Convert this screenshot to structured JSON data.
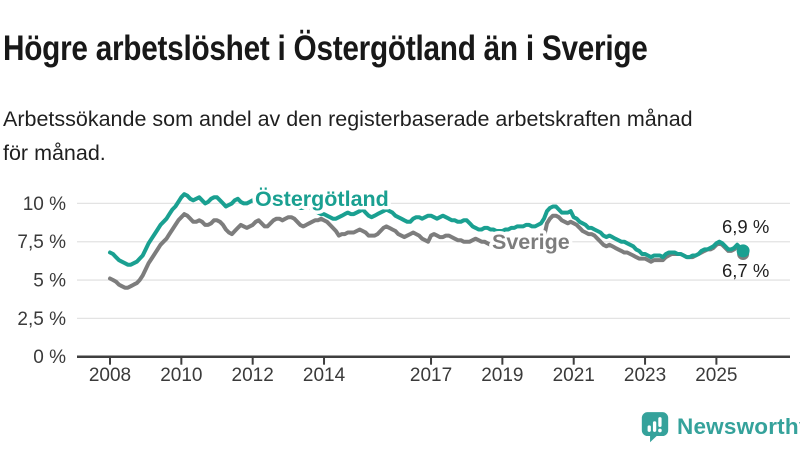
{
  "header": {
    "title": "Högre arbetslöshet i Östergötland än i Sverige",
    "subtitle": "Arbetssökande som andel av den registerbaserade arbetskraften månad\nför månad."
  },
  "footer": {
    "brand": "Newsworthy"
  },
  "colors": {
    "ostergotland": "#1aa091",
    "sverige": "#7d7d7d",
    "brand_teal": "#35a29b",
    "axis": "#3f3f3f",
    "grid": "#e3e3e3",
    "text": "#1f1f1f"
  },
  "chart_data": {
    "type": "line",
    "frequency": "monthly",
    "x_start": "2008-01",
    "x_end": "2025-10",
    "x_start_year": 2008,
    "x_tick_years": [
      2008,
      2010,
      2012,
      2014,
      2017,
      2019,
      2021,
      2023,
      2025
    ],
    "y_ticks": [
      {
        "value": 0,
        "label": "0 %"
      },
      {
        "value": 2.5,
        "label": "2,5 %"
      },
      {
        "value": 5,
        "label": "5 %"
      },
      {
        "value": 7.5,
        "label": "7,5 %"
      },
      {
        "value": 10,
        "label": "10 %"
      }
    ],
    "ylim": [
      0,
      11.5
    ],
    "unit": "%",
    "grid": true,
    "legend": "inline-labels",
    "series": [
      {
        "name": "Östergötland",
        "color": "#1aa091",
        "end_label": "6,9 %",
        "end_value": 6.9,
        "values": [
          6.8,
          6.7,
          6.5,
          6.3,
          6.2,
          6.1,
          6.0,
          6.0,
          6.1,
          6.2,
          6.4,
          6.6,
          7.0,
          7.4,
          7.7,
          8.0,
          8.3,
          8.6,
          8.8,
          9.0,
          9.3,
          9.6,
          9.8,
          10.1,
          10.4,
          10.6,
          10.5,
          10.3,
          10.2,
          10.3,
          10.4,
          10.2,
          10.0,
          10.1,
          10.3,
          10.4,
          10.4,
          10.2,
          10.0,
          9.8,
          9.9,
          10.0,
          10.2,
          10.3,
          10.1,
          10.0,
          10.0,
          10.1,
          10.2,
          10.3,
          10.1,
          9.9,
          9.8,
          9.9,
          10.1,
          10.2,
          10.0,
          9.9,
          9.9,
          10.0,
          10.1,
          10.1,
          10.0,
          9.8,
          9.7,
          9.7,
          9.8,
          9.8,
          9.6,
          9.5,
          9.4,
          9.3,
          9.3,
          9.2,
          9.1,
          9.0,
          9.0,
          9.1,
          9.2,
          9.3,
          9.4,
          9.3,
          9.3,
          9.4,
          9.5,
          9.6,
          9.4,
          9.2,
          9.1,
          9.2,
          9.3,
          9.4,
          9.5,
          9.6,
          9.5,
          9.4,
          9.2,
          9.1,
          9.0,
          8.9,
          8.8,
          8.8,
          9.0,
          9.1,
          9.1,
          9.0,
          9.1,
          9.2,
          9.2,
          9.1,
          9.0,
          9.1,
          9.2,
          9.1,
          9.0,
          8.9,
          8.9,
          8.8,
          8.8,
          8.9,
          8.9,
          8.7,
          8.5,
          8.4,
          8.3,
          8.3,
          8.4,
          8.4,
          8.3,
          8.3,
          8.2,
          8.2,
          8.2,
          8.3,
          8.3,
          8.4,
          8.4,
          8.5,
          8.5,
          8.5,
          8.6,
          8.6,
          8.5,
          8.5,
          8.6,
          8.7,
          9.0,
          9.5,
          9.7,
          9.8,
          9.8,
          9.6,
          9.4,
          9.4,
          9.4,
          9.5,
          9.1,
          9.0,
          8.8,
          8.7,
          8.6,
          8.4,
          8.4,
          8.3,
          8.2,
          8.1,
          7.9,
          7.8,
          7.9,
          7.8,
          7.7,
          7.6,
          7.5,
          7.5,
          7.4,
          7.3,
          7.2,
          7.0,
          6.9,
          6.7,
          6.7,
          6.6,
          6.5,
          6.6,
          6.6,
          6.6,
          6.5,
          6.7,
          6.8,
          6.8,
          6.8,
          6.7,
          6.7,
          6.6,
          6.5,
          6.5,
          6.6,
          6.6,
          6.7,
          6.9,
          7.0,
          7.0,
          7.1,
          7.2,
          7.4,
          7.5,
          7.4,
          7.2,
          7.0,
          7.0,
          7.1,
          7.3,
          7.1,
          6.9
        ]
      },
      {
        "name": "Sverige",
        "color": "#7d7d7d",
        "end_label": "6,7 %",
        "end_value": 6.7,
        "values": [
          5.1,
          5.0,
          4.9,
          4.7,
          4.6,
          4.5,
          4.5,
          4.6,
          4.7,
          4.8,
          5.0,
          5.3,
          5.7,
          6.1,
          6.4,
          6.7,
          7.0,
          7.3,
          7.5,
          7.7,
          8.0,
          8.3,
          8.6,
          8.9,
          9.1,
          9.3,
          9.2,
          9.0,
          8.8,
          8.8,
          8.9,
          8.8,
          8.6,
          8.6,
          8.7,
          8.9,
          8.9,
          8.8,
          8.6,
          8.3,
          8.1,
          8.0,
          8.2,
          8.4,
          8.6,
          8.5,
          8.4,
          8.5,
          8.6,
          8.8,
          8.9,
          8.7,
          8.5,
          8.5,
          8.7,
          8.9,
          9.0,
          9.0,
          8.9,
          9.0,
          9.1,
          9.1,
          9.0,
          8.8,
          8.6,
          8.5,
          8.6,
          8.7,
          8.8,
          8.9,
          8.9,
          9.0,
          8.9,
          8.8,
          8.6,
          8.4,
          8.2,
          7.9,
          8.0,
          8.0,
          8.1,
          8.1,
          8.1,
          8.2,
          8.3,
          8.2,
          8.1,
          7.9,
          7.9,
          7.9,
          8.0,
          8.2,
          8.4,
          8.5,
          8.4,
          8.3,
          8.2,
          8.0,
          7.9,
          7.8,
          7.9,
          8.0,
          8.1,
          8.0,
          7.9,
          7.7,
          7.6,
          7.5,
          7.9,
          8.0,
          7.9,
          7.8,
          7.8,
          7.9,
          7.9,
          7.8,
          7.7,
          7.6,
          7.6,
          7.5,
          7.5,
          7.5,
          7.6,
          7.7,
          7.6,
          7.5,
          7.5,
          7.4,
          7.3,
          7.2,
          7.2,
          7.2,
          7.2,
          7.3,
          7.3,
          7.2,
          7.2,
          7.3,
          7.4,
          7.4,
          7.4,
          7.4,
          7.4,
          7.4,
          7.4,
          7.4,
          7.8,
          8.7,
          9.0,
          9.2,
          9.2,
          9.1,
          8.9,
          8.8,
          8.7,
          8.8,
          8.7,
          8.6,
          8.4,
          8.2,
          8.1,
          8.0,
          8.0,
          7.9,
          7.7,
          7.5,
          7.3,
          7.2,
          7.3,
          7.2,
          7.1,
          7.0,
          6.9,
          6.8,
          6.8,
          6.7,
          6.6,
          6.5,
          6.4,
          6.4,
          6.4,
          6.3,
          6.2,
          6.3,
          6.3,
          6.3,
          6.3,
          6.5,
          6.6,
          6.7,
          6.7,
          6.7,
          6.7,
          6.6,
          6.5,
          6.5,
          6.5,
          6.6,
          6.7,
          6.8,
          6.9,
          7.0,
          7.0,
          7.1,
          7.3,
          7.4,
          7.3,
          7.1,
          6.9,
          6.9,
          7.0,
          7.2,
          7.0,
          6.7
        ]
      }
    ]
  }
}
